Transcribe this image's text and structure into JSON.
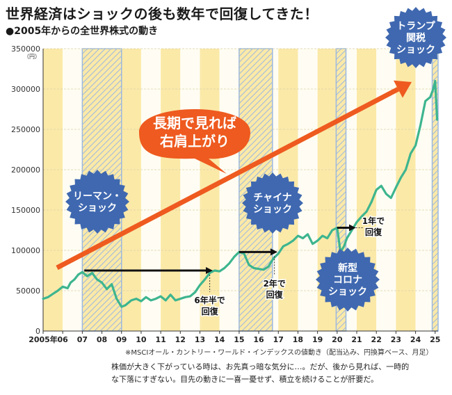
{
  "header": {
    "title": "世界経済はショックの後も数年で回復してきた！",
    "subtitle": "●2005年からの全世界株式の動き"
  },
  "chart_data": {
    "type": "line",
    "title": "2005年からの全世界株式の動き",
    "yunit": "（円）",
    "ylim": [
      0,
      350000
    ],
    "yticks": [
      "0",
      "50000",
      "100000",
      "150000",
      "200000",
      "250000",
      "300000",
      "350000"
    ],
    "xlim": [
      2005,
      2025.15
    ],
    "xticks": [
      {
        "x": 2005,
        "label": "2005年"
      },
      {
        "x": 2006,
        "label": "06"
      },
      {
        "x": 2007,
        "label": "07"
      },
      {
        "x": 2008,
        "label": "08"
      },
      {
        "x": 2009,
        "label": "09"
      },
      {
        "x": 2010,
        "label": "10"
      },
      {
        "x": 2011,
        "label": "11"
      },
      {
        "x": 2012,
        "label": "12"
      },
      {
        "x": 2013,
        "label": "13"
      },
      {
        "x": 2014,
        "label": "14"
      },
      {
        "x": 2015,
        "label": "15"
      },
      {
        "x": 2016,
        "label": "16"
      },
      {
        "x": 2017,
        "label": "17"
      },
      {
        "x": 2018,
        "label": "18"
      },
      {
        "x": 2019,
        "label": "19"
      },
      {
        "x": 2020,
        "label": "20"
      },
      {
        "x": 2021,
        "label": "21"
      },
      {
        "x": 2022,
        "label": "22"
      },
      {
        "x": 2023,
        "label": "23"
      },
      {
        "x": 2024,
        "label": "24"
      },
      {
        "x": 2025,
        "label": "25"
      }
    ],
    "series": [
      {
        "x": [
          2005.0,
          2005.25,
          2005.5,
          2005.75,
          2006.0,
          2006.25,
          2006.4,
          2006.6,
          2006.8,
          2007.0,
          2007.25,
          2007.5,
          2007.75,
          2008.0,
          2008.25,
          2008.5,
          2008.75,
          2009.0,
          2009.2,
          2009.5,
          2009.75,
          2010.0,
          2010.25,
          2010.5,
          2010.75,
          2011.0,
          2011.25,
          2011.5,
          2011.75,
          2012.0,
          2012.25,
          2012.5,
          2012.75,
          2013.0,
          2013.25,
          2013.5,
          2013.75,
          2014.0,
          2014.25,
          2014.5,
          2014.75,
          2015.0,
          2015.25,
          2015.5,
          2015.75,
          2016.0,
          2016.25,
          2016.5,
          2016.75,
          2017.0,
          2017.25,
          2017.5,
          2017.75,
          2018.0,
          2018.25,
          2018.5,
          2018.75,
          2019.0,
          2019.25,
          2019.5,
          2019.75,
          2020.0,
          2020.17,
          2020.35,
          2020.5,
          2020.75,
          2021.0,
          2021.25,
          2021.5,
          2021.75,
          2022.0,
          2022.25,
          2022.5,
          2022.75,
          2023.0,
          2023.25,
          2023.5,
          2023.75,
          2024.0,
          2024.25,
          2024.5,
          2024.75,
          2024.9,
          2025.0,
          2025.1
        ],
        "values": [
          40000,
          42000,
          46000,
          50000,
          55000,
          53000,
          60000,
          64000,
          70000,
          73000,
          68000,
          72000,
          64000,
          60000,
          52000,
          58000,
          40000,
          30000,
          32000,
          38000,
          40000,
          37000,
          42000,
          38000,
          40000,
          43000,
          38000,
          45000,
          38000,
          40000,
          42000,
          43000,
          48000,
          57000,
          64000,
          72000,
          75000,
          74000,
          78000,
          84000,
          92000,
          98000,
          96000,
          82000,
          78000,
          77000,
          76000,
          80000,
          90000,
          96000,
          105000,
          108000,
          112000,
          118000,
          115000,
          120000,
          108000,
          112000,
          118000,
          115000,
          125000,
          128000,
          98000,
          105000,
          115000,
          125000,
          135000,
          142000,
          148000,
          160000,
          175000,
          180000,
          170000,
          165000,
          178000,
          190000,
          200000,
          220000,
          230000,
          255000,
          285000,
          290000,
          300000,
          310000,
          262000
        ]
      }
    ],
    "shocks": [
      {
        "label_lines": [
          "リーマン・",
          "ショック"
        ],
        "start": 2007.0,
        "end": 2009.0
      },
      {
        "label_lines": [
          "チャイナ",
          "ショック"
        ],
        "start": 2015.0,
        "end": 2016.7
      },
      {
        "label_lines": [
          "新型",
          "コロナ",
          "ショック"
        ],
        "start": 2019.95,
        "end": 2020.45
      },
      {
        "label_lines": [
          "トランプ",
          "関税",
          "ショック"
        ],
        "start": 2024.85,
        "end": 2025.15
      }
    ],
    "recoveries": [
      {
        "label_lines": [
          "6年半で",
          "回復"
        ]
      },
      {
        "label_lines": [
          "2年で",
          "回復"
        ]
      },
      {
        "label_lines": [
          "1年で",
          "回復"
        ]
      }
    ],
    "trend_label_lines": [
      "長期で見れば",
      "右肩上がり"
    ],
    "note": "※MSCIオール・カントリー・ワールド・インデックスの値動き（配当込み、円換算ベース、月足）",
    "colors": {
      "line": "#3db58f",
      "stripe_yellow": "#fbe9a8",
      "stripe_white": "#fffdf3",
      "hatch": "#9bb8df",
      "shock_bubble": "#3f68b0",
      "trend_arrow": "#ee5a1f",
      "recovery_arrow": "#111111"
    }
  },
  "footer": {
    "line1": "株価が大きく下がっている時は、お先真っ暗な気分に…。だが、後から見れば、一時的",
    "line2": "な下落にすぎない。目先の動きに一喜一憂せず、積立を続けることが肝要だ。"
  }
}
